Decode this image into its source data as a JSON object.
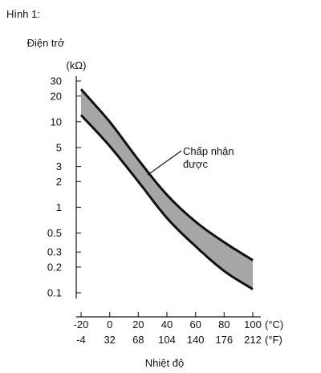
{
  "chart_data": {
    "type": "area",
    "title": "Hình 1:",
    "ylabel": "Điện trở",
    "yunit": "(kΩ)",
    "xlabel": "Nhiệt độ",
    "x_unit_primary": "(°C)",
    "x_unit_secondary": "(°F)",
    "y_scale": "log",
    "ylim": [
      0.1,
      30
    ],
    "xlim": [
      -20,
      100
    ],
    "y_ticks": [
      "30",
      "20",
      "10",
      "5",
      "3",
      "2",
      "1",
      "0.5",
      "0.3",
      "0.2",
      "0.1"
    ],
    "x_ticks_c": [
      "-20",
      "0",
      "20",
      "40",
      "60",
      "80",
      "100"
    ],
    "x_ticks_f": [
      "-4",
      "32",
      "68",
      "104",
      "140",
      "176",
      "212"
    ],
    "grid": false,
    "series": [
      {
        "name": "upper",
        "x": [
          -20,
          0,
          20,
          40,
          60,
          80,
          100
        ],
        "values": [
          24,
          10,
          3.6,
          1.4,
          0.68,
          0.39,
          0.24
        ]
      },
      {
        "name": "lower",
        "x": [
          -20,
          0,
          20,
          40,
          60,
          80,
          100
        ],
        "values": [
          12,
          5.2,
          2.0,
          0.75,
          0.35,
          0.18,
          0.11
        ]
      }
    ],
    "annotation": {
      "line1": "Chấp nhận",
      "line2": "được",
      "fill_color": "#a6a6a6"
    }
  }
}
